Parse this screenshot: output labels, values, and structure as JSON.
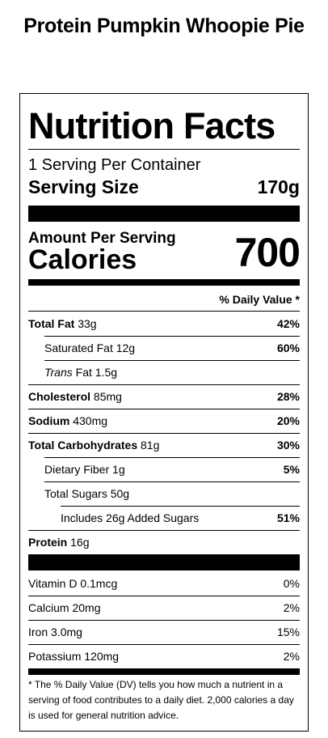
{
  "recipe_title": "Protein Pumpkin Whoopie Pie",
  "panel": {
    "heading": "Nutrition Facts",
    "servings_per_container": "1 Serving Per Container",
    "serving_size_label": "Serving Size",
    "serving_size_value": "170g",
    "amount_per_serving": "Amount Per Serving",
    "calories_label": "Calories",
    "calories_value": "700",
    "daily_value_header": "% Daily Value *"
  },
  "nutrients": {
    "total_fat": {
      "label": "Total Fat",
      "amount": "33g",
      "dv": "42%"
    },
    "saturated_fat": {
      "label": "Saturated Fat",
      "amount": "12g",
      "dv": "60%"
    },
    "trans_fat": {
      "label_italic": "Trans",
      "label": "Fat",
      "amount": "1.5g"
    },
    "cholesterol": {
      "label": "Cholesterol",
      "amount": "85mg",
      "dv": "28%"
    },
    "sodium": {
      "label": "Sodium",
      "amount": "430mg",
      "dv": "20%"
    },
    "total_carbohydrates": {
      "label": "Total Carbohydrates",
      "amount": "81g",
      "dv": "30%"
    },
    "dietary_fiber": {
      "label": "Dietary Fiber",
      "amount": "1g",
      "dv": "5%"
    },
    "total_sugars": {
      "label": "Total Sugars",
      "amount": "50g"
    },
    "added_sugars": {
      "label": "Includes 26g Added Sugars",
      "dv": "51%"
    },
    "protein": {
      "label": "Protein",
      "amount": "16g"
    }
  },
  "vitamins": {
    "vitamin_d": {
      "label": "Vitamin D",
      "amount": "0.1mcg",
      "dv": "0%"
    },
    "calcium": {
      "label": "Calcium",
      "amount": "20mg",
      "dv": "2%"
    },
    "iron": {
      "label": "Iron",
      "amount": "3.0mg",
      "dv": "15%"
    },
    "potassium": {
      "label": "Potassium",
      "amount": "120mg",
      "dv": "2%"
    }
  },
  "footnote": "* The % Daily Value (DV) tells you how much a nutrient in a serving of food contributes to a daily diet. 2,000 calories a day is used for general nutrition advice."
}
